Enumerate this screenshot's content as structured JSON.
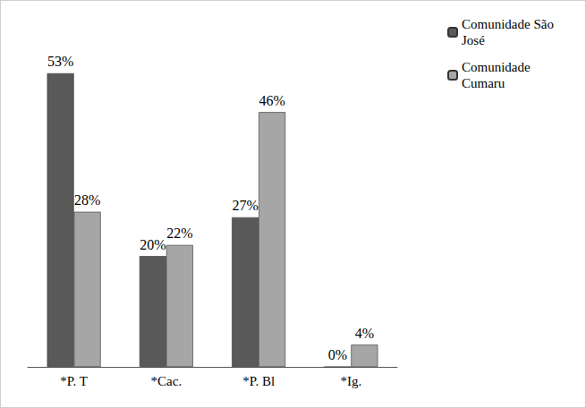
{
  "chart_data": {
    "type": "bar",
    "categories": [
      "*P. T",
      "*Cac.",
      "*P. Bl",
      "*Ig."
    ],
    "series": [
      {
        "name": "Comunidade São José",
        "color": "#595959",
        "values": [
          53,
          20,
          27,
          0
        ],
        "value_labels": [
          "53%",
          "20%",
          "27%",
          "0%"
        ]
      },
      {
        "name": "Comunidade Cumaru",
        "color": "#a6a6a6",
        "values": [
          28,
          22,
          46,
          4
        ],
        "value_labels": [
          "28%",
          "22%",
          "46%",
          "4%"
        ]
      }
    ],
    "ylim": [
      0,
      58
    ],
    "grid": false,
    "legend": "upper right",
    "data_labels": true,
    "tick_labels": "x"
  }
}
